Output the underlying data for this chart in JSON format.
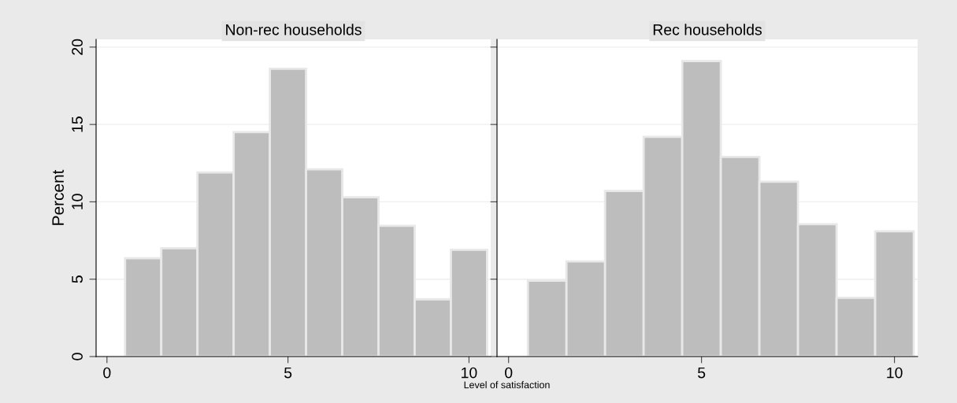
{
  "chart_data": [
    {
      "type": "histogram",
      "title": "Non-rec households",
      "xlabel": "Level of satisfaction",
      "ylabel": "Percent",
      "color": "#bdbdbd",
      "bins": [
        0.5,
        1.5,
        2.5,
        3.5,
        4.5,
        5.5,
        6.5,
        7.5,
        8.5,
        9.5,
        10.5
      ],
      "values": [
        6.35,
        7.0,
        11.9,
        14.5,
        18.6,
        12.1,
        10.3,
        8.45,
        3.7,
        6.9
      ],
      "xlim": [
        -0.3,
        10.6
      ],
      "xticks": [
        0,
        5,
        10
      ],
      "ylim": [
        0,
        20.5
      ],
      "yticks": [
        0,
        5,
        10,
        15,
        20
      ],
      "grid": "y"
    },
    {
      "type": "histogram",
      "title": "Rec households",
      "color": "#bdbdbd",
      "bins": [
        0.5,
        1.5,
        2.5,
        3.5,
        4.5,
        5.5,
        6.5,
        7.5,
        8.5,
        9.5,
        10.5
      ],
      "values": [
        4.9,
        6.15,
        10.7,
        14.2,
        19.1,
        12.9,
        11.3,
        8.55,
        3.8,
        8.1
      ],
      "xlim": [
        -0.3,
        10.6
      ],
      "xticks": [
        0,
        5,
        10
      ],
      "ylim": [
        0,
        20.5
      ],
      "yticks": [
        0,
        5,
        10,
        15,
        20
      ],
      "grid": "y",
      "tick_labels": "x"
    }
  ]
}
